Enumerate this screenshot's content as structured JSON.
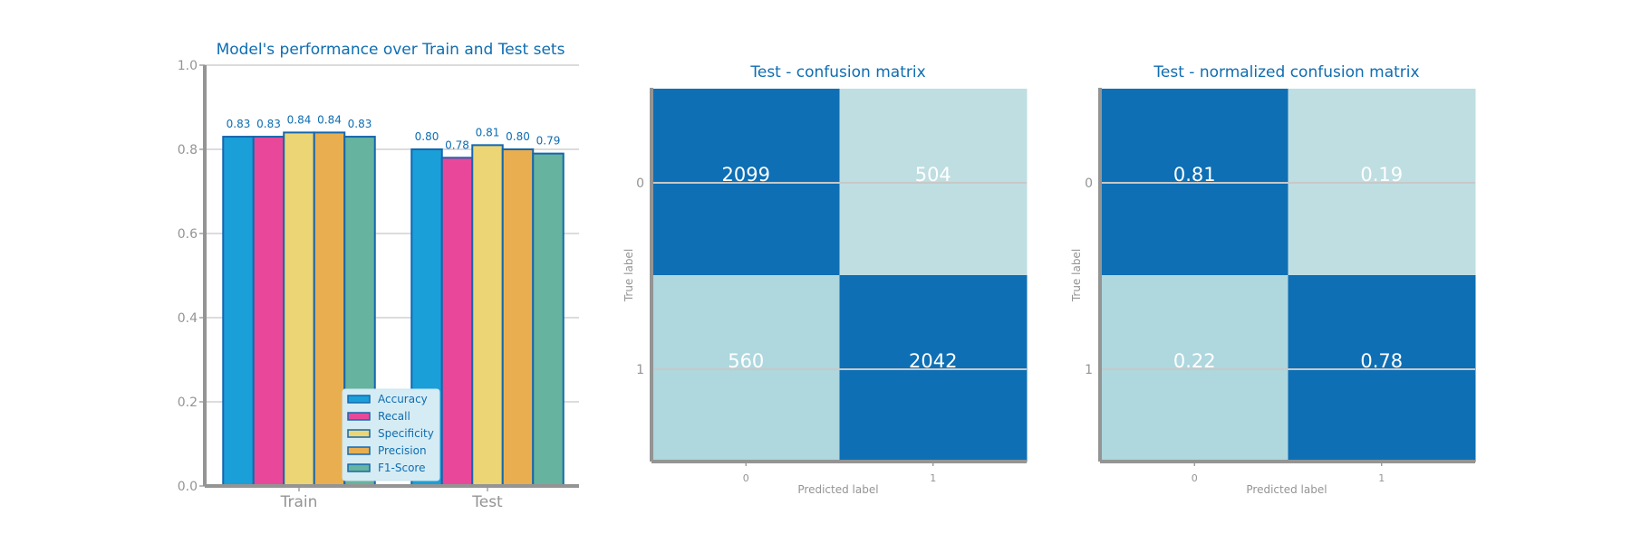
{
  "colors": {
    "title": "#0e6db2",
    "axis": "#949494",
    "tick_label": "#949494",
    "grid": "#c8c8c8",
    "bar_edge": "#1567ad",
    "cm_high": "#0e6fb4",
    "cm_mid": "#bfdee2",
    "cm_low": "#aed7de",
    "cm_text": "#ffffff",
    "legend_bg": "#d6ecf4",
    "legend_text": "#0e6db2"
  },
  "chart_data": [
    {
      "type": "bar",
      "title": "Model's performance over Train and Test sets",
      "categories": [
        "Train",
        "Test"
      ],
      "series": [
        {
          "name": "Accuracy",
          "color": "#1a9fd9",
          "values": [
            0.83,
            0.8
          ]
        },
        {
          "name": "Recall",
          "color": "#e9489a",
          "values": [
            0.83,
            0.78
          ]
        },
        {
          "name": "Specificity",
          "color": "#ecd574",
          "values": [
            0.84,
            0.81
          ]
        },
        {
          "name": "Precision",
          "color": "#e8ae4f",
          "values": [
            0.84,
            0.8
          ]
        },
        {
          "name": "F1-Score",
          "color": "#66b39f",
          "values": [
            0.83,
            0.79
          ]
        }
      ],
      "value_labels": [
        [
          "0.83",
          "0.80"
        ],
        [
          "0.83",
          "0.78"
        ],
        [
          "0.84",
          "0.81"
        ],
        [
          "0.84",
          "0.80"
        ],
        [
          "0.83",
          "0.79"
        ]
      ],
      "ylim": [
        0,
        1.0
      ],
      "yticks": [
        "0.0",
        "0.2",
        "0.4",
        "0.6",
        "0.8",
        "1.0"
      ],
      "grid": true,
      "legend_position": "lower-center"
    },
    {
      "type": "heatmap",
      "title": "Test - confusion matrix",
      "xlabel": "Predicted label",
      "ylabel": "True label",
      "xticks": [
        "0",
        "1"
      ],
      "yticks": [
        "0",
        "1"
      ],
      "matrix": [
        [
          2099,
          504
        ],
        [
          560,
          2042
        ]
      ],
      "cell_labels": [
        [
          "2099",
          "504"
        ],
        [
          "560",
          "2042"
        ]
      ]
    },
    {
      "type": "heatmap",
      "title": "Test - normalized confusion matrix",
      "xlabel": "Predicted label",
      "ylabel": "True label",
      "xticks": [
        "0",
        "1"
      ],
      "yticks": [
        "0",
        "1"
      ],
      "matrix": [
        [
          0.81,
          0.19
        ],
        [
          0.22,
          0.78
        ]
      ],
      "cell_labels": [
        [
          "0.81",
          "0.19"
        ],
        [
          "0.22",
          "0.78"
        ]
      ]
    }
  ]
}
